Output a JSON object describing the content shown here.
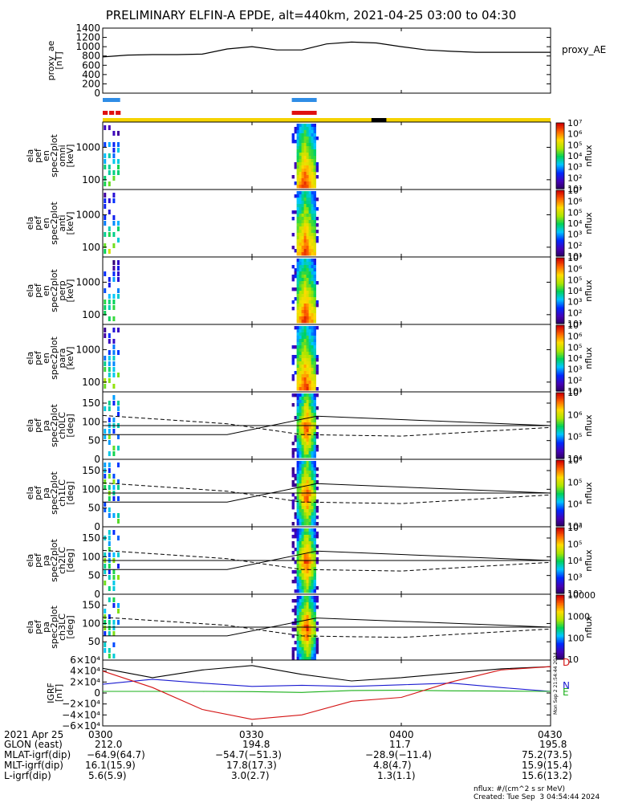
{
  "title": "PRELIMINARY ELFIN-A EPDE, alt=440km, 2021-04-25 03:00 to 04:30",
  "colors": {
    "status_yellow": "#f5d300",
    "status_black": "#000000",
    "bar_blue": "#2f8de6",
    "bar_red": "#e01010",
    "trace_black": "#000000",
    "trace_blue": "#1b1bd0",
    "trace_green": "#19b019",
    "trace_red": "#d41414"
  },
  "ae_panel": {
    "ylabel": [
      "proxy_ae",
      "[nT]"
    ],
    "ticks": [
      "1400",
      "1200",
      "1000",
      "800",
      "600",
      "400",
      "200",
      "0"
    ],
    "legend": "proxy_AE"
  },
  "spec_panels": [
    {
      "label": [
        "ela",
        "pef",
        "en",
        "spec2plot",
        "omni",
        "[keV]"
      ],
      "ticks": [
        "1000",
        "100"
      ],
      "cbar_label": "nflux",
      "cbar_ticks": [
        "10⁷",
        "10⁶",
        "10⁵",
        "10⁴",
        "10³",
        "10²",
        "10¹"
      ]
    },
    {
      "label": [
        "ela",
        "pef",
        "en",
        "spec2plot",
        "anti",
        "[keV]"
      ],
      "ticks": [
        "1000",
        "100"
      ],
      "cbar_label": "nflux",
      "cbar_ticks": [
        "10⁷",
        "10⁶",
        "10⁵",
        "10⁴",
        "10³",
        "10²",
        "10¹"
      ]
    },
    {
      "label": [
        "ela",
        "pef",
        "en",
        "spec2plot",
        "perp",
        "[keV]"
      ],
      "ticks": [
        "1000",
        "100"
      ],
      "cbar_label": "nflux",
      "cbar_ticks": [
        "10⁷",
        "10⁶",
        "10⁵",
        "10⁴",
        "10³",
        "10²",
        "10¹"
      ]
    },
    {
      "label": [
        "ela",
        "pef",
        "en",
        "spec2plot",
        "para",
        "[keV]"
      ],
      "ticks": [
        "1000",
        "100"
      ],
      "cbar_label": "nflux",
      "cbar_ticks": [
        "10⁷",
        "10⁶",
        "10⁵",
        "10⁴",
        "10³",
        "10²",
        "10¹"
      ]
    }
  ],
  "pa_panels": [
    {
      "label": [
        "ela",
        "pef",
        "pa",
        "spec2plot",
        "ch0LC",
        "[deg]"
      ],
      "ticks": [
        "150",
        "100",
        "50",
        "0"
      ],
      "cbar_label": "nflux",
      "cbar_ticks": [
        "10⁷",
        "10⁶",
        "10⁵",
        "10⁴"
      ]
    },
    {
      "label": [
        "ela",
        "pef",
        "pa",
        "spec2plot",
        "ch1LC",
        "[deg]"
      ],
      "ticks": [
        "150",
        "100",
        "50",
        "0"
      ],
      "cbar_label": "nflux",
      "cbar_ticks": [
        "10⁶",
        "10⁵",
        "10⁴",
        "10³"
      ]
    },
    {
      "label": [
        "ela",
        "pef",
        "pa",
        "spec2plot",
        "ch2LC",
        "[deg]"
      ],
      "ticks": [
        "150",
        "100",
        "50",
        "0"
      ],
      "cbar_label": "nflux",
      "cbar_ticks": [
        "10⁶",
        "10⁵",
        "10⁴",
        "10³",
        "10²"
      ]
    },
    {
      "label": [
        "ela",
        "pef",
        "pa",
        "spec2plot",
        "ch3LC",
        "[deg]"
      ],
      "ticks": [
        "150",
        "100",
        "50"
      ],
      "cbar_label": "nflux",
      "cbar_ticks": [
        "10000",
        "1000",
        "100",
        "10"
      ]
    }
  ],
  "igrf_panel": {
    "ylabel": [
      "IGRF",
      "[nT]"
    ],
    "ticks": [
      "6×10⁴",
      "4×10⁴",
      "2×10⁴",
      "0",
      "−2×10⁴",
      "−4×10⁴",
      "−6×10⁴"
    ],
    "legend": [
      "D",
      "N",
      "E"
    ],
    "side_note": "Mon Sep  2 21:54:44 2024"
  },
  "footer": {
    "rows": [
      {
        "label": "2021 Apr 25",
        "values": [
          "0300",
          "0330",
          "0400",
          "0430"
        ]
      },
      {
        "label": "GLON (east)",
        "values": [
          "212.0",
          "194.8",
          "11.7",
          "195.8"
        ]
      },
      {
        "label": "MLAT-igrf(dip)",
        "values": [
          "−64.9(64.7)",
          "−54.7(−51.3)",
          "−28.9(−11.4)",
          "75.2(73.5)"
        ]
      },
      {
        "label": "MLT-igrf(dip)",
        "values": [
          "16.1(15.9)",
          "17.8(17.3)",
          "4.8(4.7)",
          "15.9(15.4)"
        ]
      },
      {
        "label": "L-igrf(dip)",
        "values": [
          "5.6(5.9)",
          "3.0(2.7)",
          "1.3(1.1)",
          "15.6(13.2)"
        ]
      }
    ],
    "note_units": "nflux: #/(cm^2 s sr MeV)",
    "note_created": "Created: Tue Sep  3 04:54:44 2024"
  },
  "chart_data": {
    "type": "line",
    "title": "PRELIMINARY ELFIN-A EPDE, alt=440km, 2021-04-25 03:00 to 04:30",
    "x_ticks": [
      "0300",
      "0330",
      "0400",
      "0430"
    ],
    "x_range_min": [
      0,
      90
    ],
    "series": [
      {
        "name": "proxy_AE",
        "x_min": [
          0,
          5,
          10,
          15,
          20,
          25,
          30,
          35,
          40,
          45,
          50,
          55,
          60,
          65,
          70,
          75,
          80,
          85,
          90
        ],
        "y_nT": [
          780,
          820,
          830,
          830,
          840,
          950,
          1000,
          930,
          930,
          1060,
          1100,
          1080,
          1000,
          930,
          900,
          880,
          880,
          880,
          880
        ],
        "ylim": [
          0,
          1400
        ]
      }
    ],
    "spectrogram_bursts_min": [
      [
        0,
        4
      ],
      [
        38,
        43
      ]
    ],
    "energy_ylim_keV": [
      50,
      6000
    ],
    "pitch_ylim_deg": [
      0,
      180
    ],
    "cbar_range_nflux": [
      10,
      10000000
    ],
    "igrf_components": {
      "ylim_nT": [
        -60000,
        60000
      ],
      "D": {
        "x_min": [
          0,
          10,
          20,
          30,
          40,
          50,
          60,
          70,
          80,
          90
        ],
        "y_nT": [
          40000,
          10000,
          -30000,
          -48000,
          -40000,
          -15000,
          -8000,
          20000,
          42000,
          48000
        ]
      },
      "N": {
        "x_min": [
          0,
          10,
          20,
          30,
          40,
          50,
          60,
          70,
          80,
          90
        ],
        "y_nT": [
          16000,
          25000,
          18000,
          12000,
          14000,
          12000,
          15000,
          18000,
          10000,
          3000
        ]
      },
      "E": {
        "x_min": [
          0,
          10,
          20,
          30,
          40,
          50,
          60,
          70,
          80,
          90
        ],
        "y_nT": [
          3000,
          3000,
          3000,
          2500,
          1000,
          4500,
          5000,
          4000,
          3500,
          3000
        ]
      },
      "total": {
        "x_min": [
          0,
          10,
          20,
          30,
          40,
          50,
          60,
          70,
          80,
          90
        ],
        "y_nT": [
          45000,
          28000,
          42000,
          50000,
          34000,
          22000,
          28000,
          36000,
          44000,
          48000
        ]
      }
    }
  }
}
